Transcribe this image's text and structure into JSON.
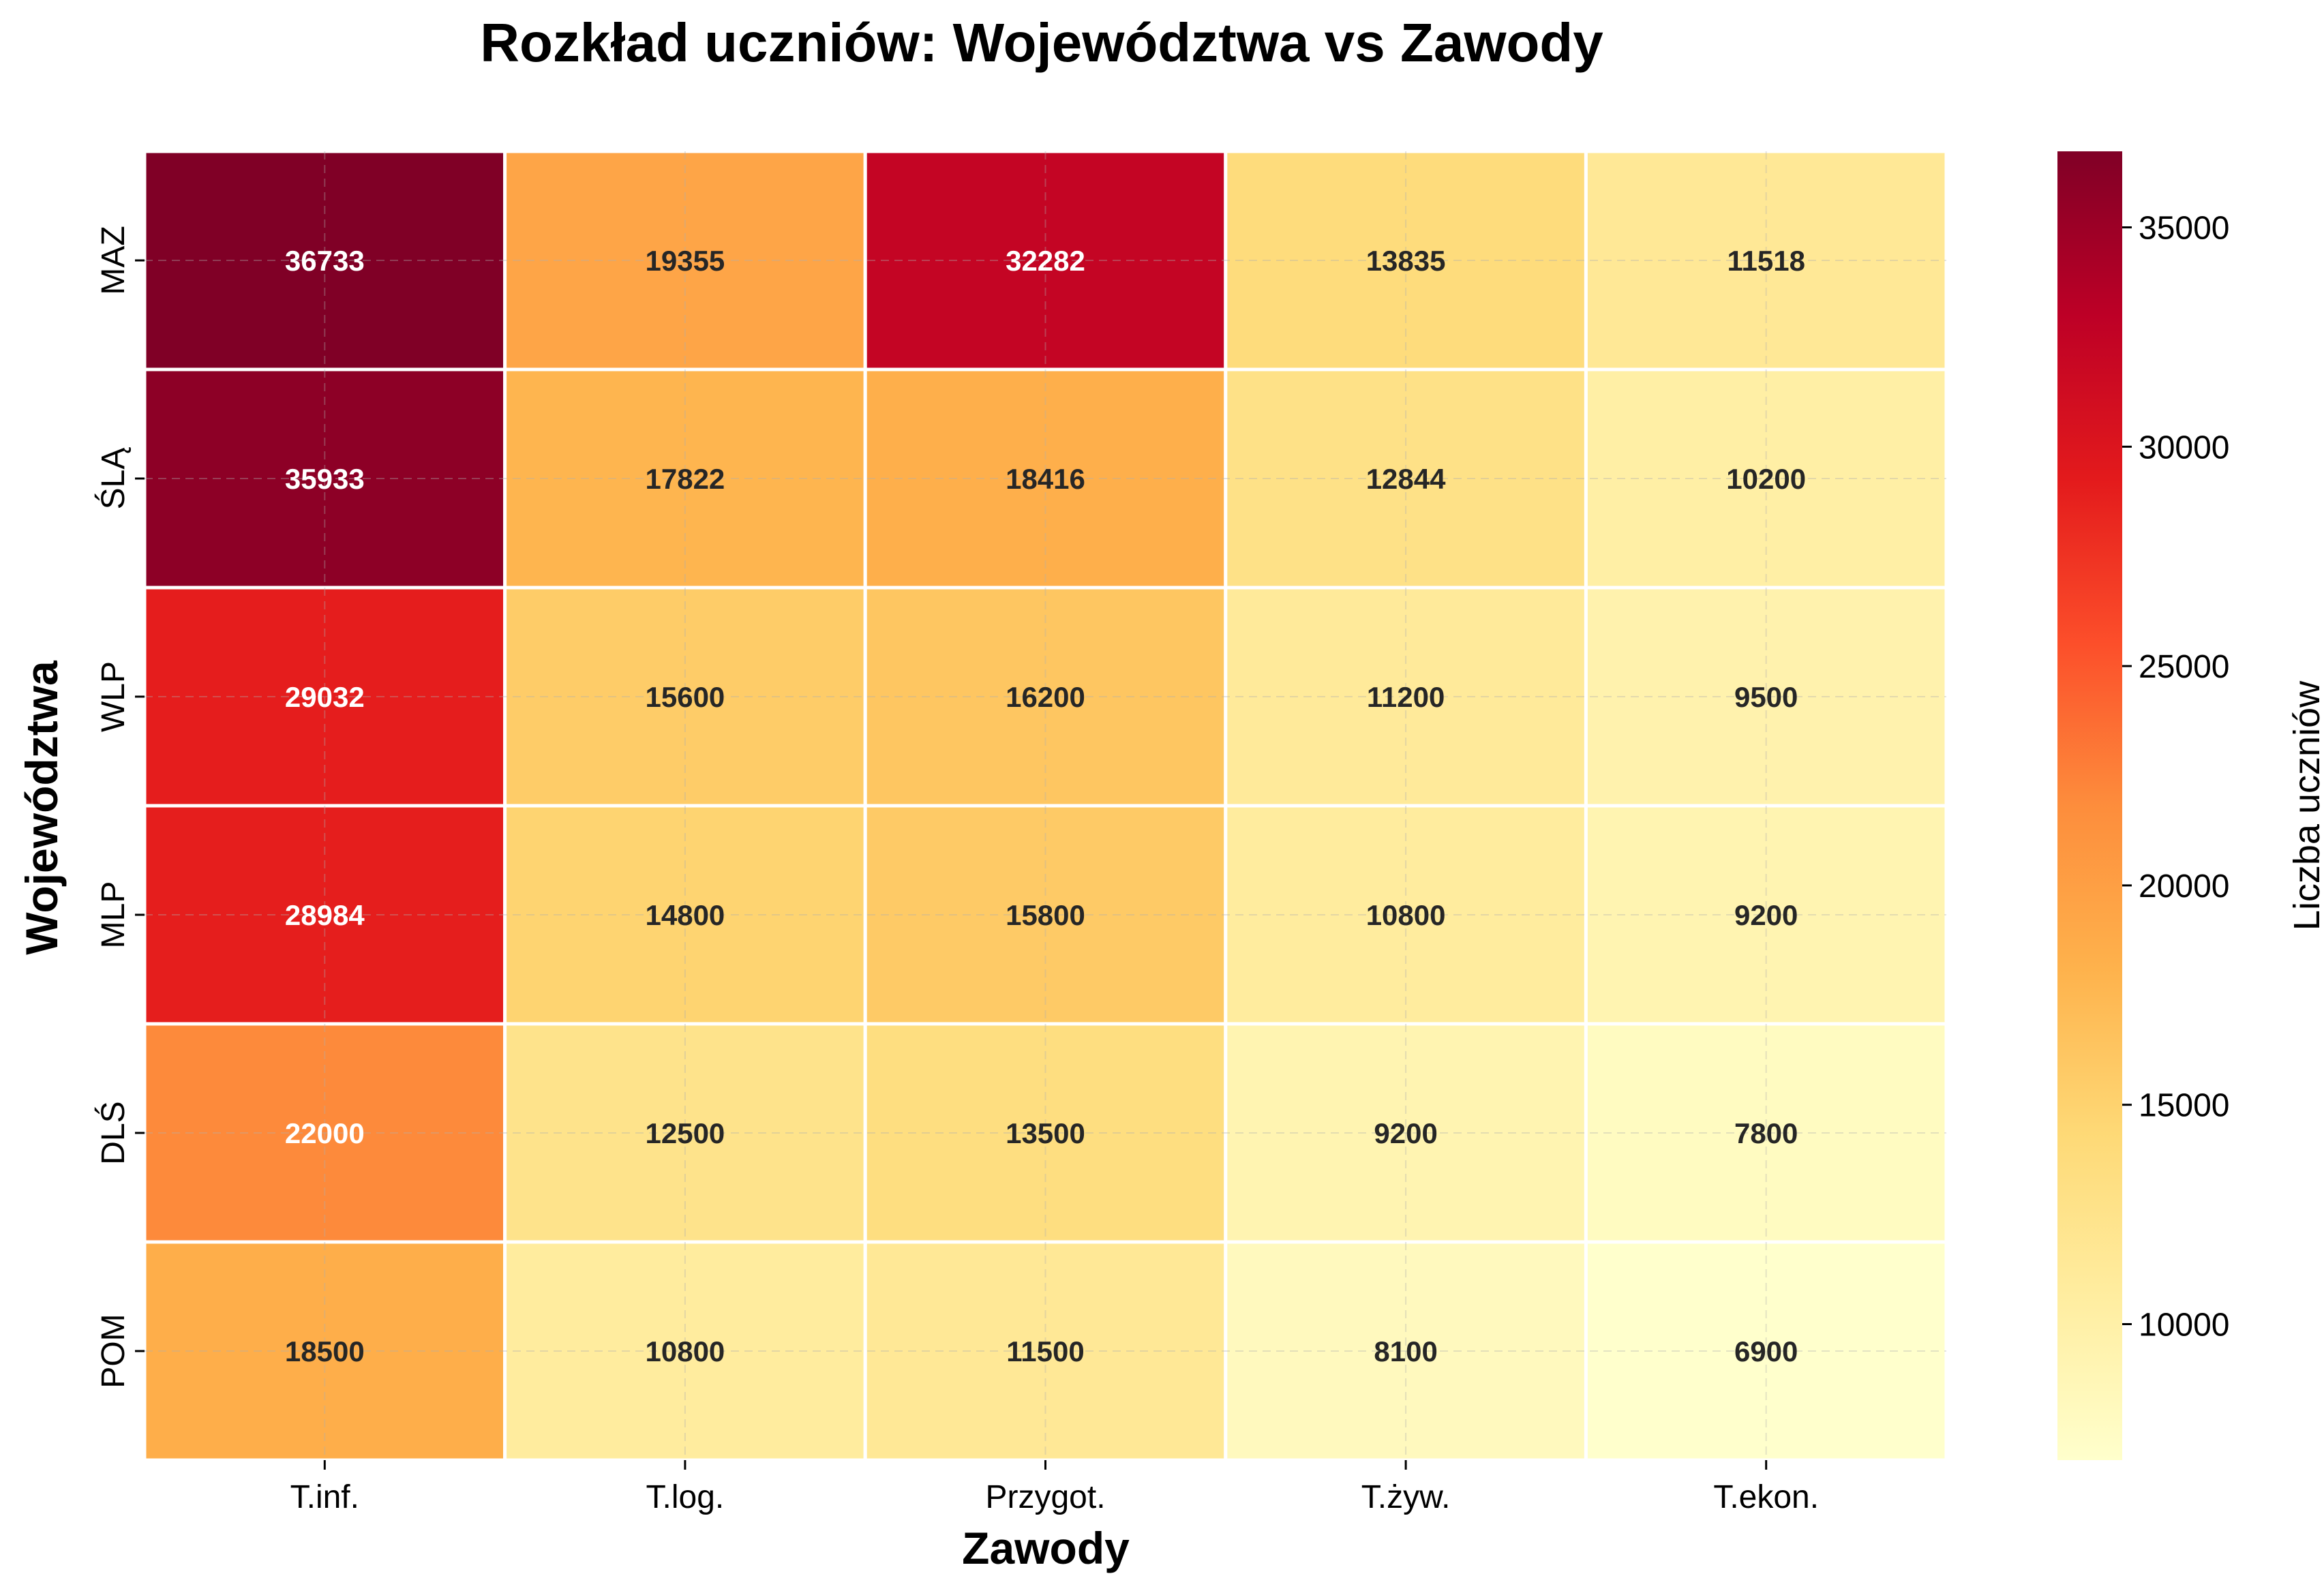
{
  "chart_data": {
    "type": "heatmap",
    "title": "Rozkład uczniów: Województwa vs Zawody",
    "xlabel": "Zawody",
    "ylabel": "Województwa",
    "x_categories": [
      "T.inf.",
      "T.log.",
      "Przygot.",
      "T.żyw.",
      "T.ekon."
    ],
    "y_categories": [
      "MAZ",
      "ŚLĄ",
      "WLP",
      "MLP",
      "DLŚ",
      "POM"
    ],
    "values": [
      [
        36733,
        19355,
        32282,
        13835,
        11518
      ],
      [
        35933,
        17822,
        18416,
        12844,
        10200
      ],
      [
        29032,
        15600,
        16200,
        11200,
        9500
      ],
      [
        28984,
        14800,
        15800,
        10800,
        9200
      ],
      [
        22000,
        12500,
        13500,
        9200,
        7800
      ],
      [
        18500,
        10800,
        11500,
        8100,
        6900
      ]
    ],
    "colorbar": {
      "label": "Liczba uczniów",
      "range": [
        6900,
        36733
      ],
      "ticks": [
        10000,
        15000,
        20000,
        25000,
        30000,
        35000
      ],
      "colormap": "YlOrRd",
      "colormap_stops": [
        "#ffffcc",
        "#ffeda0",
        "#fed976",
        "#feb24c",
        "#fd8d3c",
        "#fc4e2a",
        "#e31a1c",
        "#bd0026",
        "#800026"
      ]
    },
    "annotation_colors": {
      "light_text": "#ffffff",
      "dark_text": "#262626"
    },
    "grid": true
  }
}
